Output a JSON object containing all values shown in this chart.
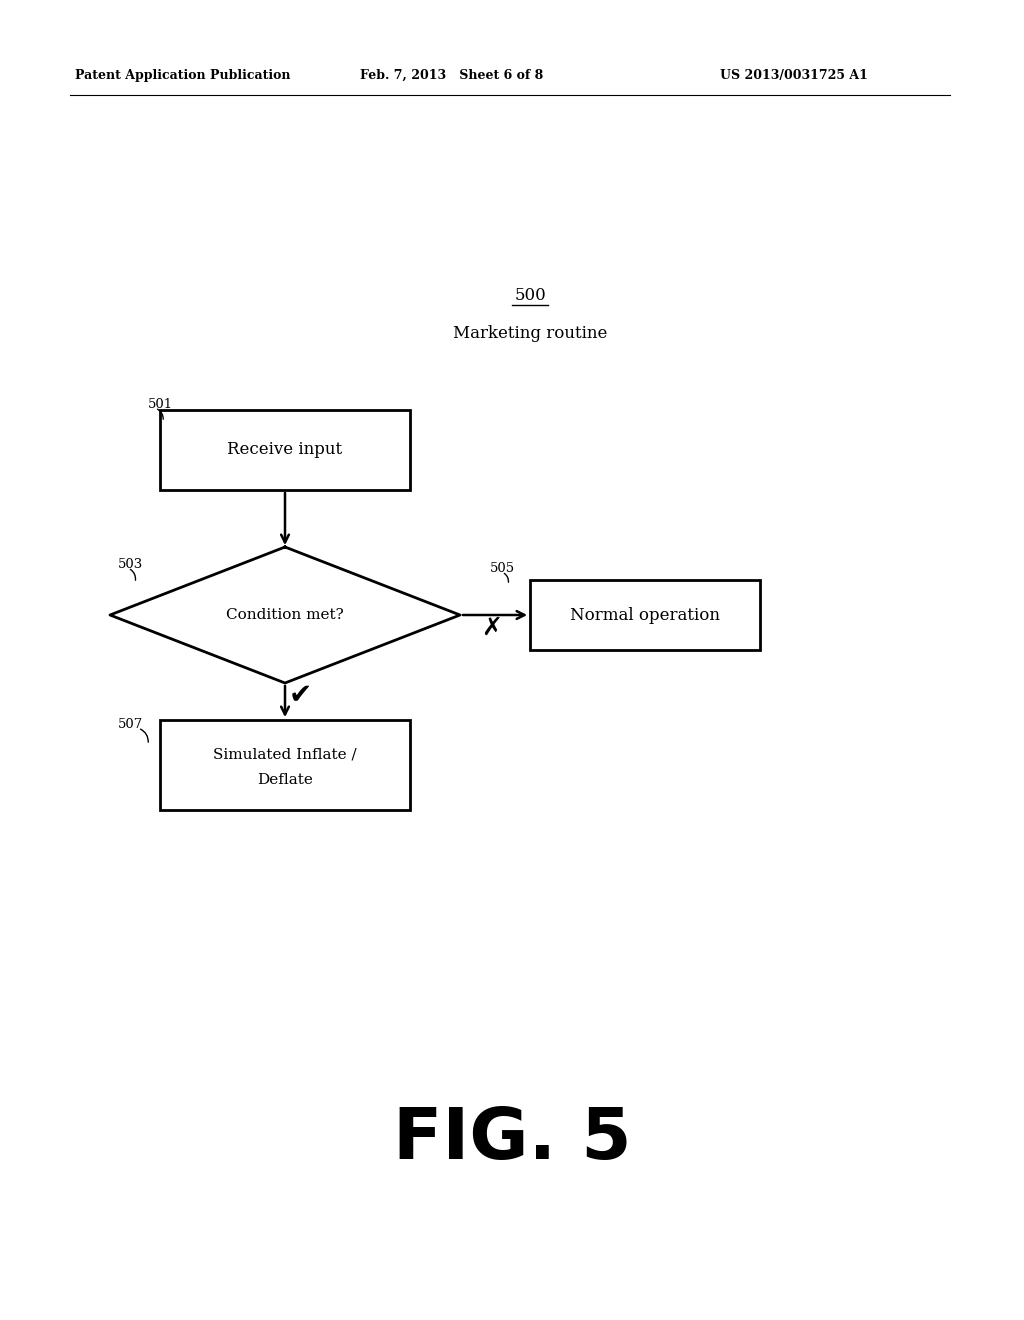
{
  "bg_color": "#ffffff",
  "header_left": "Patent Application Publication",
  "header_mid": "Feb. 7, 2013   Sheet 6 of 8",
  "header_right": "US 2013/0031725 A1",
  "label_500": "500",
  "label_500_sub": "Marketing routine",
  "label_501": "501",
  "label_503": "503",
  "label_505": "505",
  "label_507": "507",
  "box_receive": "Receive input",
  "diamond_text": "Condition met?",
  "box_normal": "Normal operation",
  "box_simulated_line1": "Simulated Inflate /",
  "box_simulated_line2": "Deflate",
  "fig_label": "FIG. 5",
  "text_color": "#000000"
}
